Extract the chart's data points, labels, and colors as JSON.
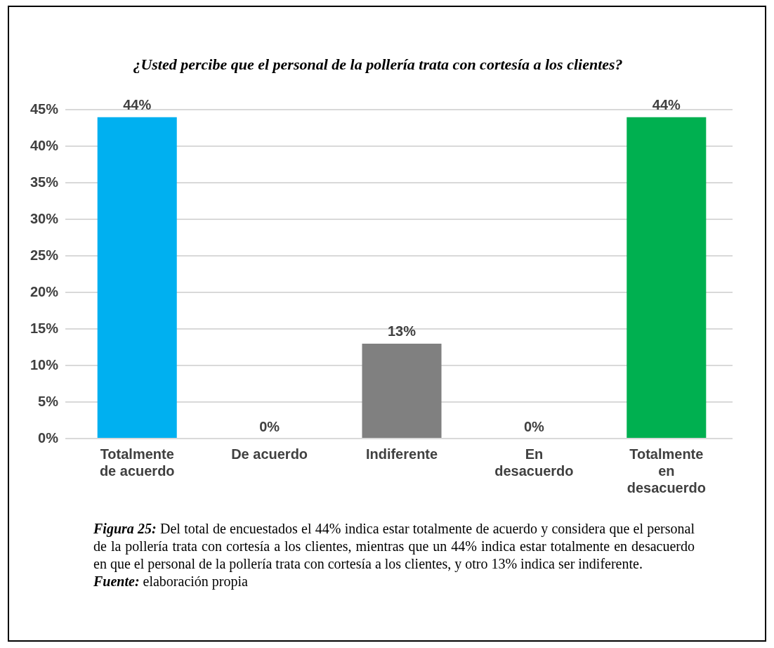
{
  "chart_data": {
    "type": "bar",
    "title": "¿Usted percibe que el personal de la pollería trata con cortesía a los clientes?",
    "categories": [
      "Totalmente de acuerdo",
      "De acuerdo",
      "Indiferente",
      "En desacuerdo",
      "Totalmente en desacuerdo"
    ],
    "values": [
      44,
      0,
      13,
      0,
      44
    ],
    "colors": [
      "#00b0f0",
      "#c4c400",
      "#808080",
      "#c55a11",
      "#00b050"
    ],
    "value_labels": [
      "44%",
      "0%",
      "13%",
      "0%",
      "44%"
    ],
    "ylim": [
      0,
      45
    ],
    "yticks": [
      {
        "value": 0,
        "label": "0%"
      },
      {
        "value": 5,
        "label": "5%"
      },
      {
        "value": 10,
        "label": "10%"
      },
      {
        "value": 15,
        "label": "15%"
      },
      {
        "value": 20,
        "label": "20%"
      },
      {
        "value": 25,
        "label": "25%"
      },
      {
        "value": 30,
        "label": "30%"
      },
      {
        "value": 35,
        "label": "35%"
      },
      {
        "value": 40,
        "label": "40%"
      },
      {
        "value": 45,
        "label": "45%"
      }
    ],
    "grid": "y",
    "legend": false,
    "annotations": [
      "Figura 25: Del total de encuestados el 44% indica estar totalmente de acuerdo y considera que el personal de la pollería trata con cortesía a los clientes, mientras que un 44% indica estar totalmente en desacuerdo en que el personal de la pollería trata con cortesía a los clientes, y otro 13% indica ser indiferente.",
      "Fuente: elaboración propia"
    ]
  }
}
